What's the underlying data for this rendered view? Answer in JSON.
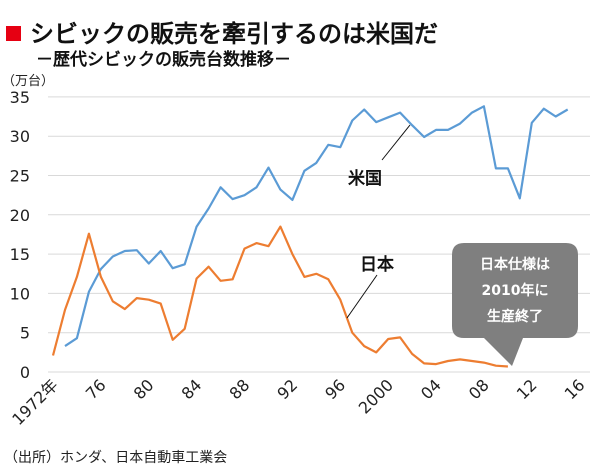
{
  "title": "シビックの販売を牽引するのは米国だ",
  "subtitle": "－歴代シビックの販売台数推移－",
  "source": "（出所）ホンダ、日本自動車工業会",
  "colors": {
    "title_marker": "#e60012",
    "usa": "#5b9bd5",
    "japan": "#ed7d31",
    "callout": "#7f7f7f",
    "grid": "#d9d9d9"
  },
  "chart_data": {
    "type": "line",
    "title": "シビックの販売を牽引するのは米国だ",
    "ylabel": "（万台）",
    "ylim": [
      0,
      35
    ],
    "yticks": [
      0,
      5,
      10,
      15,
      20,
      25,
      30,
      35
    ],
    "xlim": [
      1972,
      2016
    ],
    "xtick_values": [
      1972,
      1976,
      1980,
      1984,
      1988,
      1992,
      1996,
      2000,
      2004,
      2008,
      2012,
      2016
    ],
    "xtick_labels": [
      "1972年",
      "76",
      "80",
      "84",
      "88",
      "92",
      "96",
      "2000",
      "04",
      "08",
      "12",
      "16"
    ],
    "grid": "horizontal",
    "series": [
      {
        "name": "米国",
        "start_year": 1973,
        "values": [
          3.3,
          4.3,
          10.2,
          13.1,
          14.7,
          15.4,
          15.5,
          13.8,
          15.4,
          13.2,
          13.7,
          18.5,
          20.8,
          23.5,
          22.0,
          22.5,
          23.5,
          26.0,
          23.2,
          21.9,
          25.6,
          26.6,
          28.9,
          28.6,
          32.0,
          33.4,
          31.8,
          32.4,
          33.0,
          31.4,
          29.9,
          30.8,
          30.8,
          31.6,
          33.0,
          33.8,
          25.9,
          25.9,
          22.1,
          31.7,
          33.5,
          32.5,
          33.4
        ]
      },
      {
        "name": "日本",
        "start_year": 1972,
        "values": [
          2.1,
          7.9,
          12.1,
          17.6,
          12.1,
          9.0,
          8.0,
          9.4,
          9.2,
          8.7,
          4.1,
          5.5,
          11.9,
          13.4,
          11.6,
          11.8,
          15.7,
          16.4,
          16.0,
          18.5,
          15.0,
          12.1,
          12.5,
          11.8,
          9.2,
          5.0,
          3.3,
          2.5,
          4.2,
          4.4,
          2.3,
          1.1,
          1.0,
          1.4,
          1.6,
          1.4,
          1.2,
          0.8,
          0.7
        ]
      }
    ],
    "annotations": {
      "usa_label": "米国",
      "japan_label": "日本",
      "callout_lines": [
        "日本仕様は",
        "2010年に",
        "生産終了"
      ]
    }
  }
}
